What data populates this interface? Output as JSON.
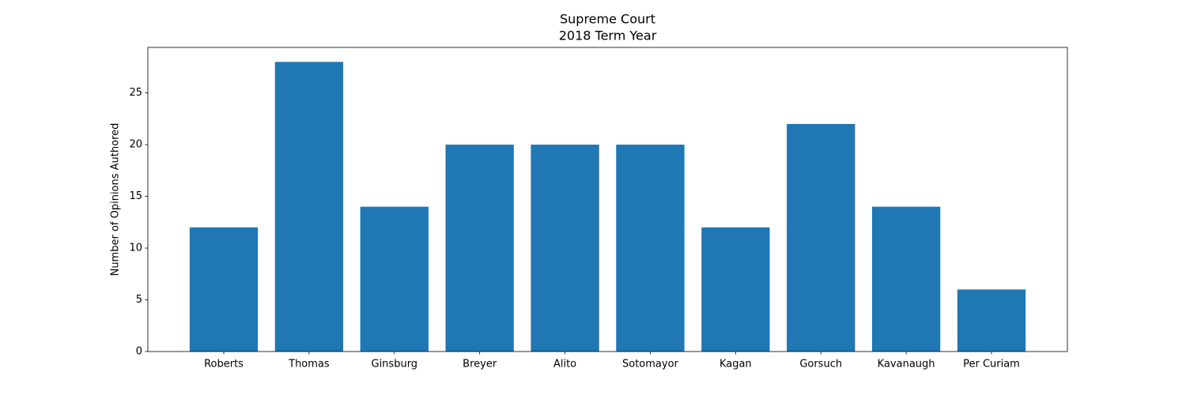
{
  "chart_data": {
    "type": "bar",
    "title": "Supreme Court",
    "subtitle": "2018 Term Year",
    "y_label": "Number of Opinions Authored",
    "categories": [
      "Roberts",
      "Thomas",
      "Ginsburg",
      "Breyer",
      "Alito",
      "Sotomayor",
      "Kagan",
      "Gorsuch",
      "Kavanaugh",
      "Per Curiam"
    ],
    "values": [
      12,
      28,
      14,
      20,
      20,
      20,
      12,
      22,
      14,
      6
    ],
    "color": "#1f77b4",
    "ylim": [
      0,
      29.4
    ],
    "yticks": [
      0,
      5,
      10,
      15,
      20,
      25
    ],
    "grid": false
  }
}
